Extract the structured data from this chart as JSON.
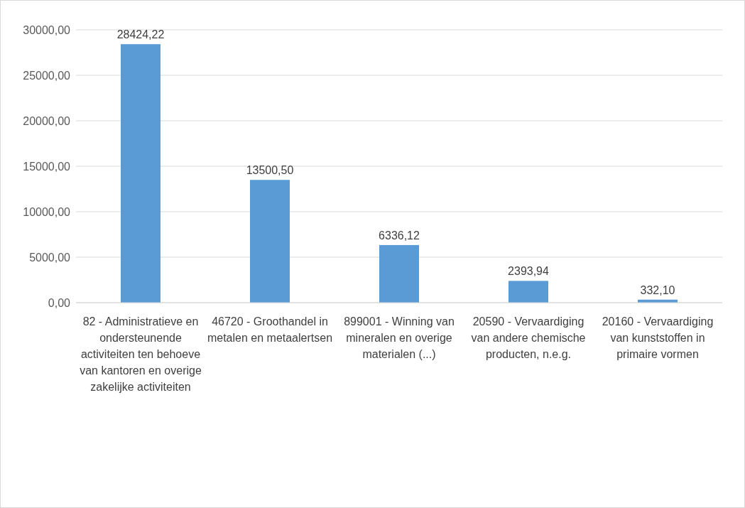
{
  "chart_data": {
    "type": "bar",
    "categories": [
      "82 - Administratieve en ondersteunende activiteiten ten behoeve van kantoren en overige zakelijke activiteiten",
      "46720 - Groothandel in metalen en metaalertsen",
      "899001 - Winning van mineralen en overige materialen (...)",
      "20590 - Vervaardiging van andere chemische producten, n.e.g.",
      "20160 - Vervaardiging van kunststoffen in primaire vormen"
    ],
    "values": [
      28424.22,
      13500.5,
      6336.12,
      2393.94,
      332.1
    ],
    "value_labels": [
      "28424,22",
      "13500,50",
      "6336,12",
      "2393,94",
      "332,10"
    ],
    "color": "#5b9bd5",
    "ylim": [
      0,
      30000
    ],
    "yticks": [
      {
        "value": 0,
        "label": "0,00"
      },
      {
        "value": 5000,
        "label": "5000,00"
      },
      {
        "value": 10000,
        "label": "10000,00"
      },
      {
        "value": 15000,
        "label": "15000,00"
      },
      {
        "value": 20000,
        "label": "20000,00"
      },
      {
        "value": 25000,
        "label": "25000,00"
      },
      {
        "value": 30000,
        "label": "30000,00"
      }
    ],
    "grid": "y"
  }
}
